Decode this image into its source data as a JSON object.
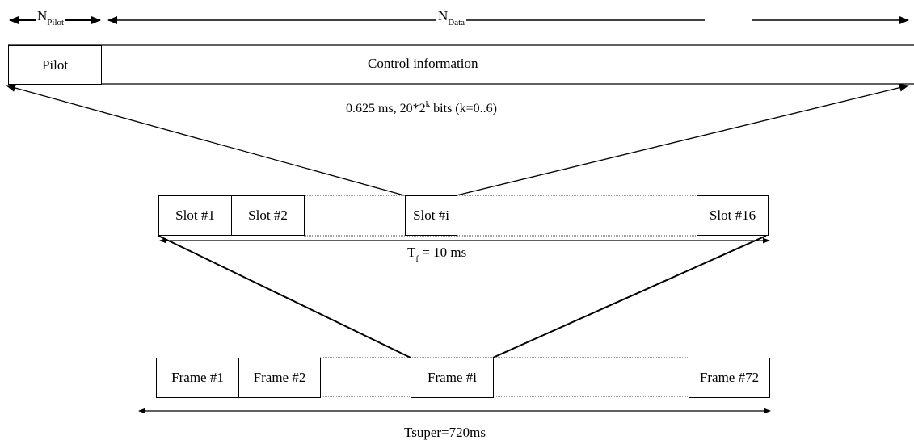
{
  "slot_structure": {
    "pilot_label_main": "N",
    "pilot_label_sub": "Pilot",
    "data_label_main": "N",
    "data_label_sub": "Data",
    "pilot_box": "Pilot",
    "control_box": "Control information",
    "slot_desc_prefix": "0.625 ms, 20*2",
    "slot_desc_sup": "k",
    "slot_desc_suffix": " bits (k=0..6)"
  },
  "frame_structure": {
    "slots": [
      "Slot #1",
      "Slot #2",
      "Slot #i",
      "Slot #16"
    ],
    "tf_main": "T",
    "tf_sub": "f",
    "tf_value": " = 10 ms"
  },
  "superframe_structure": {
    "frames": [
      "Frame #1",
      "Frame #2",
      "Frame #i",
      "Frame #72"
    ],
    "tsuper_label": "Tsuper=720ms"
  }
}
